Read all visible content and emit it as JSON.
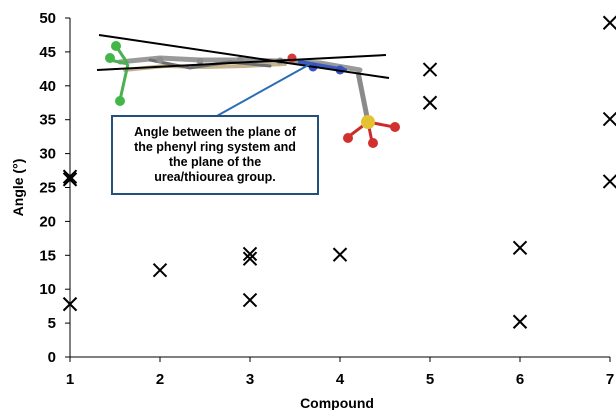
{
  "chart_data": {
    "type": "scatter",
    "title": "",
    "xlabel": "Compound",
    "ylabel": "Angle (°)",
    "xlim": [
      1,
      7
    ],
    "ylim": [
      0,
      50
    ],
    "x_ticks": [
      1,
      2,
      3,
      4,
      5,
      6,
      7
    ],
    "y_ticks": [
      0,
      5,
      10,
      15,
      20,
      25,
      30,
      35,
      40,
      45,
      50
    ],
    "grid": false,
    "marker": "x",
    "series": [
      {
        "x": [
          1,
          1,
          1,
          2,
          3,
          3,
          3,
          4,
          5,
          5,
          6,
          6,
          7,
          7,
          7
        ],
        "y": [
          26.6,
          26.2,
          7.8,
          12.8,
          15.2,
          14.5,
          8.4,
          15.1,
          42.4,
          37.5,
          16.1,
          5.2,
          49.3,
          35.1,
          25.9
        ]
      }
    ],
    "annotation": {
      "lines": [
        "Angle between the plane of",
        "the phenyl ring system and",
        "the plane of the",
        "urea/thiourea group."
      ]
    }
  },
  "colors": {
    "axis": "#000000",
    "marker": "#000000",
    "callout_border": "#24507f",
    "callout_arrow": "#2a6db5"
  }
}
